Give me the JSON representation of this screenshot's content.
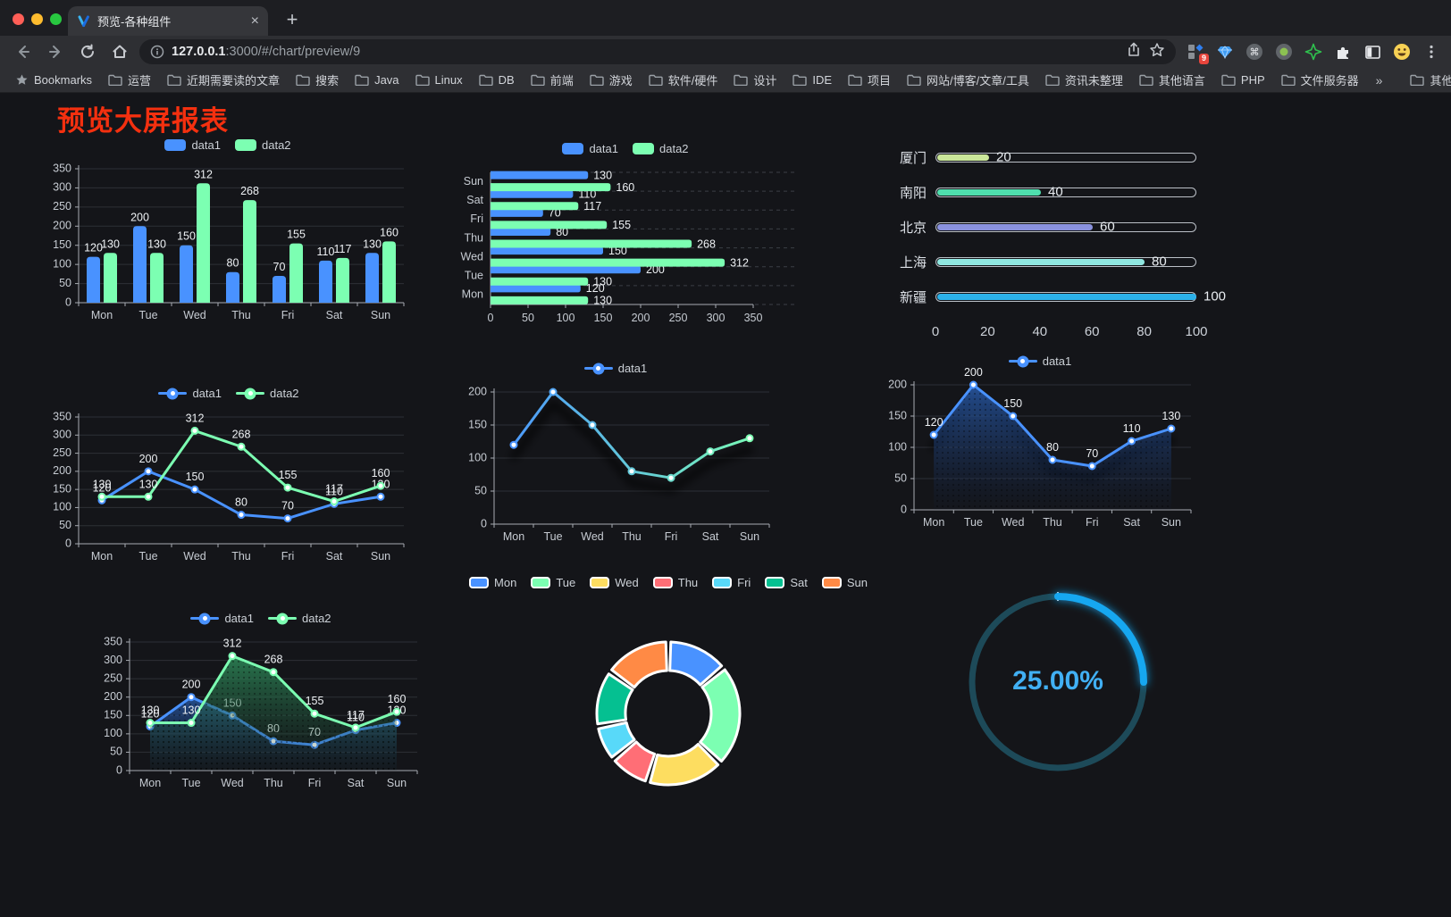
{
  "browser": {
    "tab": {
      "title": "预览-各种组件"
    },
    "glyphs": {
      "close": "×",
      "new_tab": "+"
    },
    "url_host": "127.0.0.1",
    "url_rest": ":3000/#/chart/preview/9",
    "extension_badge": "9",
    "bookmarks_label": "Bookmarks",
    "bookmark_folders": [
      "运营",
      "近期需要读的文章",
      "搜索",
      "Java",
      "Linux",
      "DB",
      "前端",
      "游戏",
      "软件/硬件",
      "设计",
      "IDE",
      "项目",
      "网站/博客/文章/工具",
      "资讯未整理",
      "其他语言",
      "PHP",
      "文件服务器"
    ],
    "bookmarks_overflow": "»",
    "other_bookmarks": "其他书签"
  },
  "page": {
    "title": "预览大屏报表",
    "title_color": "#f4300f",
    "background": "#141519"
  },
  "chart_data": [
    {
      "id": "bar-vertical",
      "type": "bar",
      "legend_position": "top",
      "categories": [
        "Mon",
        "Tue",
        "Wed",
        "Thu",
        "Fri",
        "Sat",
        "Sun"
      ],
      "series": [
        {
          "name": "data1",
          "color": "#4992ff",
          "values": [
            120,
            200,
            150,
            80,
            70,
            110,
            130
          ]
        },
        {
          "name": "data2",
          "color": "#7cffb2",
          "values": [
            130,
            130,
            312,
            268,
            155,
            117,
            160
          ]
        }
      ],
      "ylim": [
        0,
        350
      ],
      "ytick_step": 50,
      "show_value_labels": true,
      "grid": true
    },
    {
      "id": "bar-horizontal",
      "type": "hbar",
      "legend_position": "top",
      "categories": [
        "Mon",
        "Tue",
        "Wed",
        "Thu",
        "Fri",
        "Sat",
        "Sun"
      ],
      "series": [
        {
          "name": "data1",
          "color": "#4992ff",
          "values": [
            120,
            200,
            150,
            80,
            70,
            110,
            130
          ]
        },
        {
          "name": "data2",
          "color": "#7cffb2",
          "values": [
            130,
            130,
            312,
            268,
            155,
            117,
            160
          ]
        }
      ],
      "xlim": [
        0,
        350
      ],
      "xtick_step": 50,
      "show_value_labels": true
    },
    {
      "id": "progress-list",
      "type": "progress",
      "max": 100,
      "xticks": [
        0,
        20,
        40,
        60,
        80,
        100
      ],
      "items": [
        {
          "label": "厦门",
          "value": 20,
          "color": "#cbe79a"
        },
        {
          "label": "南阳",
          "value": 40,
          "color": "#4fdfae"
        },
        {
          "label": "北京",
          "value": 60,
          "color": "#8a92df"
        },
        {
          "label": "上海",
          "value": 80,
          "color": "#90e7e1"
        },
        {
          "label": "新疆",
          "value": 100,
          "color": "#2cb1e9"
        }
      ]
    },
    {
      "id": "line-dual",
      "type": "line",
      "legend_position": "top",
      "categories": [
        "Mon",
        "Tue",
        "Wed",
        "Thu",
        "Fri",
        "Sat",
        "Sun"
      ],
      "series": [
        {
          "name": "data1",
          "color": "#4992ff",
          "values": [
            120,
            200,
            150,
            80,
            70,
            110,
            130
          ]
        },
        {
          "name": "data2",
          "color": "#7cffb2",
          "values": [
            130,
            130,
            312,
            268,
            155,
            117,
            160
          ]
        }
      ],
      "ylim": [
        0,
        350
      ],
      "ytick_step": 50,
      "show_value_labels": true
    },
    {
      "id": "line-gradient",
      "type": "line",
      "legend_position": "top",
      "categories": [
        "Mon",
        "Tue",
        "Wed",
        "Thu",
        "Fri",
        "Sat",
        "Sun"
      ],
      "series": [
        {
          "name": "data1",
          "gradient": [
            "#4992ff",
            "#7cffb2"
          ],
          "values": [
            120,
            200,
            150,
            80,
            70,
            110,
            130
          ]
        }
      ],
      "ylim": [
        0,
        200
      ],
      "ytick_step": 50,
      "show_value_labels": false,
      "shadow": true
    },
    {
      "id": "line-area",
      "type": "line",
      "legend_position": "top",
      "categories": [
        "Mon",
        "Tue",
        "Wed",
        "Thu",
        "Fri",
        "Sat",
        "Sun"
      ],
      "series": [
        {
          "name": "data1",
          "color": "#4992ff",
          "area": true,
          "area_colors": [
            "rgba(41,92,172,0.85)",
            "rgba(20,40,80,0.05)"
          ],
          "values": [
            120,
            200,
            150,
            80,
            70,
            110,
            130
          ]
        }
      ],
      "ylim": [
        0,
        200
      ],
      "ytick_step": 50,
      "show_value_labels": true,
      "shadow": true
    },
    {
      "id": "line-area-dual",
      "type": "line",
      "legend_position": "top",
      "categories": [
        "Mon",
        "Tue",
        "Wed",
        "Thu",
        "Fri",
        "Sat",
        "Sun"
      ],
      "series": [
        {
          "name": "data1",
          "color": "#4992ff",
          "area": true,
          "area_colors": [
            "rgba(41,92,172,0.8)",
            "rgba(20,40,80,0.06)"
          ],
          "values": [
            120,
            200,
            150,
            80,
            70,
            110,
            130
          ]
        },
        {
          "name": "data2",
          "color": "#7cffb2",
          "area": true,
          "area_colors": [
            "rgba(46,140,90,0.85)",
            "rgba(25,60,45,0.06)"
          ],
          "values": [
            130,
            130,
            312,
            268,
            155,
            117,
            160
          ]
        }
      ],
      "ylim": [
        0,
        350
      ],
      "ytick_step": 50,
      "show_value_labels": true
    },
    {
      "id": "donut",
      "type": "pie",
      "legend_position": "top",
      "inner_radius_ratio": 0.6,
      "items": [
        {
          "label": "Mon",
          "value": 120,
          "color": "#4992ff"
        },
        {
          "label": "Tue",
          "value": 200,
          "color": "#7cffb2"
        },
        {
          "label": "Wed",
          "value": 150,
          "color": "#fddd60"
        },
        {
          "label": "Thu",
          "value": 80,
          "color": "#ff6e76"
        },
        {
          "label": "Fri",
          "value": 70,
          "color": "#58d9f9"
        },
        {
          "label": "Sat",
          "value": 110,
          "color": "#05c091"
        },
        {
          "label": "Sun",
          "value": 130,
          "color": "#ff8a45"
        }
      ]
    },
    {
      "id": "gauge",
      "type": "gauge",
      "value": 25,
      "max": 100,
      "display": "25.00%",
      "color": "#18a7f0",
      "track_color": "#1d4a59",
      "text_color": "#41b0f4"
    }
  ]
}
